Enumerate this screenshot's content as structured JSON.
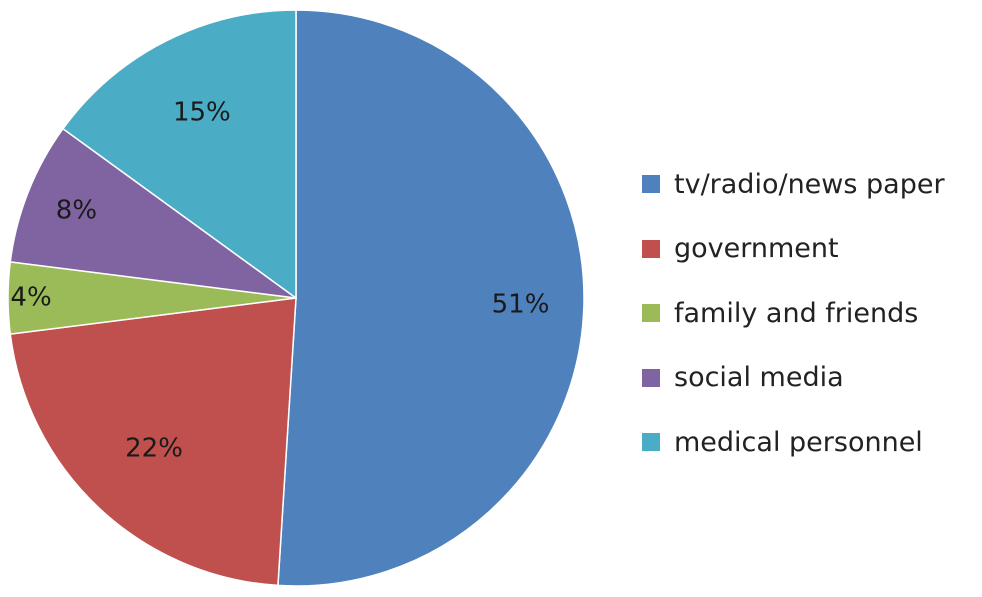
{
  "chart_data": {
    "type": "pie",
    "title": "",
    "start_angle": "top, clockwise",
    "legend_position": "right",
    "slices": [
      {
        "label": "tv/radio/news paper",
        "value": 51,
        "display": "51%",
        "color": "#4F81BD"
      },
      {
        "label": "government",
        "value": 22,
        "display": "22%",
        "color": "#C0504D"
      },
      {
        "label": "family and friends",
        "value": 4,
        "display": "4%",
        "color": "#9BBB59"
      },
      {
        "label": "social media",
        "value": 8,
        "display": "8%",
        "color": "#8064A2"
      },
      {
        "label": "medical personnel",
        "value": 15,
        "display": "15%",
        "color": "#4BACC6"
      }
    ]
  }
}
